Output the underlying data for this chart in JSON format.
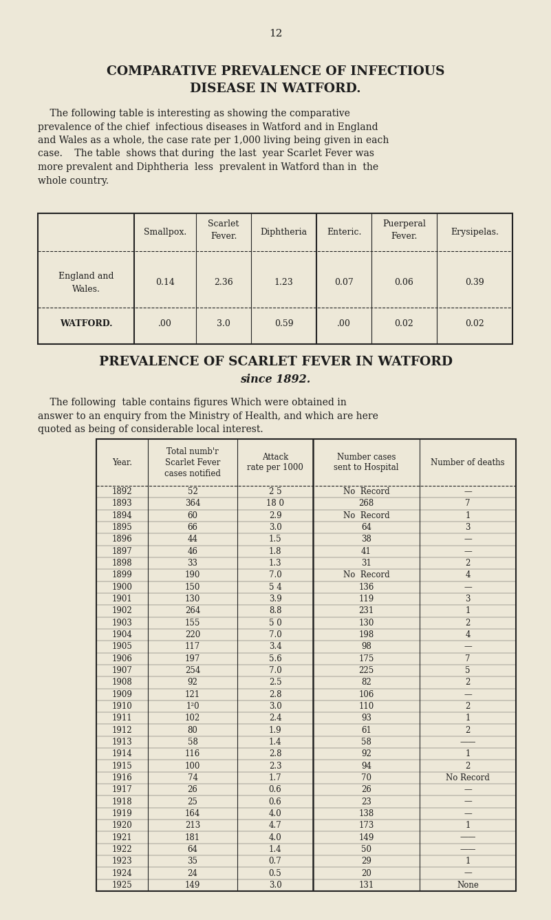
{
  "bg_color": "#ede8d8",
  "page_number": "12",
  "title1": "COMPARATIVE PREVALENCE OF INFECTIOUS",
  "title2": "DISEASE IN WATFORD.",
  "intro_lines": [
    "    The following table is interesting as showing the comparative",
    "prevalence of the chief  infectious diseases in Watford and in England",
    "and Wales as a whole, the case rate per 1,000 living being given in each",
    "case.    The table  shows that during  the last  year Scarlet Fever was",
    "more prevalent and Diphtheria  less  prevalent in Watford than in  the",
    "whole country."
  ],
  "t1_col_headers": [
    "",
    "Smallpox.",
    "Scarlet\nFever.",
    "Diphtheria",
    "Enteric.",
    "Puerperal\nFever.",
    "Erysipelas."
  ],
  "t1_row0": [
    "England and\nWales.",
    "0.14",
    "2.36",
    "1.23",
    "0.07",
    "0.06",
    "0.39"
  ],
  "t1_row1": [
    "WATFORD.",
    ".00",
    "3.0",
    "0.59",
    ".00",
    "0.02",
    "0.02"
  ],
  "title3": "PREVALENCE OF SCARLET FEVER IN WATFORD",
  "title4": "since 1892.",
  "intro2_lines": [
    "    The following  table contains figures Which were obtained in",
    "answer to an enquiry from the Ministry of Health, and which are here",
    "quoted as being of considerable local interest."
  ],
  "t2_col_headers": [
    "Year.",
    "Total numb'r\nScarlet Fever\ncases notified",
    "Attack\nrate per 1000",
    "Number cases\nsent to Hospital",
    "Number of deaths"
  ],
  "t2_rows": [
    [
      "1892",
      "52",
      "2 5",
      "No  Record",
      "—"
    ],
    [
      "1893",
      "364",
      "18 0",
      "268",
      "7"
    ],
    [
      "1894",
      "60",
      "2.9",
      "No  Record",
      "1"
    ],
    [
      "1895",
      "66",
      "3.0",
      "64",
      "3"
    ],
    [
      "1896",
      "44",
      "1.5",
      "38",
      "—"
    ],
    [
      "1897",
      "46",
      "1.8",
      "41",
      "—"
    ],
    [
      "1898",
      "33",
      "1.3",
      "31",
      "2"
    ],
    [
      "1899",
      "190",
      "7.0",
      "No  Record",
      "4"
    ],
    [
      "1900",
      "150",
      "5 4",
      "136",
      "—"
    ],
    [
      "1901",
      "130",
      "3.9",
      "119",
      "3"
    ],
    [
      "1902",
      "264",
      "8.8",
      "231",
      "1"
    ],
    [
      "1903",
      "155",
      "5 0",
      "130",
      "2"
    ],
    [
      "1904",
      "220",
      "7.0",
      "198",
      "4"
    ],
    [
      "1905",
      "117",
      "3.4",
      "98",
      "—"
    ],
    [
      "1906",
      "197",
      "5.6",
      "175",
      "7"
    ],
    [
      "1907",
      "254",
      "7.0",
      "225",
      "5"
    ],
    [
      "1908",
      "92",
      "2.5",
      "82",
      "2"
    ],
    [
      "1909",
      "121",
      "2.8",
      "106",
      "—"
    ],
    [
      "1910",
      "1²0",
      "3.0",
      "110",
      "2"
    ],
    [
      "1911",
      "102",
      "2.4",
      "93",
      "1"
    ],
    [
      "1912",
      "80",
      "1.9",
      "61",
      "2"
    ],
    [
      "1913",
      "58",
      "1.4",
      "58",
      "——"
    ],
    [
      "1914",
      "116",
      "2.8",
      "92",
      "1"
    ],
    [
      "1915",
      "100",
      "2.3",
      "94",
      "2"
    ],
    [
      "1916",
      "74",
      "1.7",
      "70",
      "No Record"
    ],
    [
      "1917",
      "26",
      "0.6",
      "26",
      "—"
    ],
    [
      "1918",
      "25",
      "0.6",
      "23",
      "—"
    ],
    [
      "1919",
      "164",
      "4.0",
      "138",
      "—"
    ],
    [
      "1920",
      "213",
      "4.7",
      "173",
      "1"
    ],
    [
      "1921",
      "181",
      "4.0",
      "149",
      "——"
    ],
    [
      "1922",
      "64",
      "1.4",
      "50",
      "——"
    ],
    [
      "1923",
      "35",
      "0.7",
      "29",
      "1"
    ],
    [
      "1924",
      "24",
      "0.5",
      "20",
      "—"
    ],
    [
      "1925",
      "149",
      "3.0",
      "131",
      "None"
    ]
  ],
  "text_color": "#1c1c1c",
  "line_color": "#222222"
}
